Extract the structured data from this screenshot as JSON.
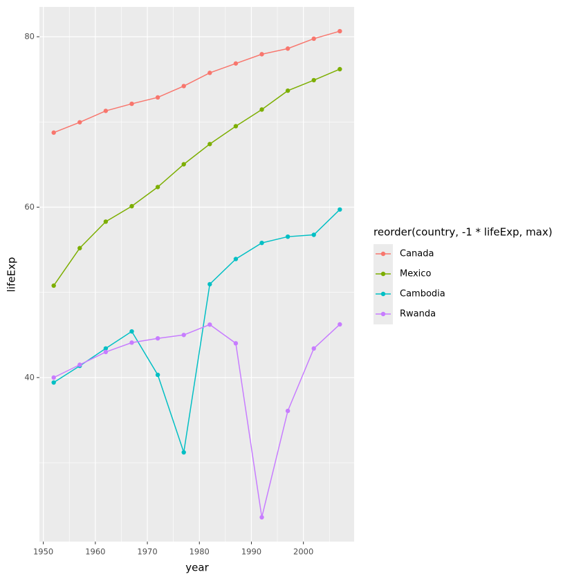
{
  "chart_data": {
    "type": "line",
    "x_label": "year",
    "y_label": "lifeExp",
    "legend_title": "reorder(country, -1 * lifeExp, max)",
    "x": [
      1952,
      1957,
      1962,
      1967,
      1972,
      1977,
      1982,
      1987,
      1992,
      1997,
      2002,
      2007
    ],
    "series": [
      {
        "name": "Canada",
        "color": "#F8766D",
        "values": [
          68.75,
          69.96,
          71.3,
          72.13,
          72.88,
          74.21,
          75.76,
          76.86,
          77.95,
          78.61,
          79.77,
          80.653
        ]
      },
      {
        "name": "Mexico",
        "color": "#7CAE00",
        "values": [
          50.789,
          55.19,
          58.299,
          60.11,
          62.361,
          65.032,
          67.405,
          69.498,
          71.455,
          73.67,
          74.902,
          76.195
        ]
      },
      {
        "name": "Cambodia",
        "color": "#00BFC4",
        "values": [
          39.417,
          41.366,
          43.415,
          45.415,
          40.317,
          31.22,
          50.957,
          53.914,
          55.803,
          56.534,
          56.752,
          59.723
        ]
      },
      {
        "name": "Rwanda",
        "color": "#C77CFF",
        "values": [
          40.0,
          41.5,
          43.0,
          44.1,
          44.6,
          45.0,
          46.218,
          44.02,
          23.599,
          36.087,
          43.413,
          46.242
        ]
      }
    ],
    "xlim": [
      1949.25,
      2009.75
    ],
    "xticks": [
      1950,
      1960,
      1970,
      1980,
      1990,
      2000
    ],
    "x_minor_ticks": [
      1955,
      1965,
      1975,
      1985,
      1995,
      2005
    ],
    "ylim": [
      20.75,
      83.5
    ],
    "yticks": [
      40,
      60,
      80
    ],
    "y_minor_ticks": [
      30,
      50,
      70
    ],
    "grid": true,
    "legend": "right"
  }
}
